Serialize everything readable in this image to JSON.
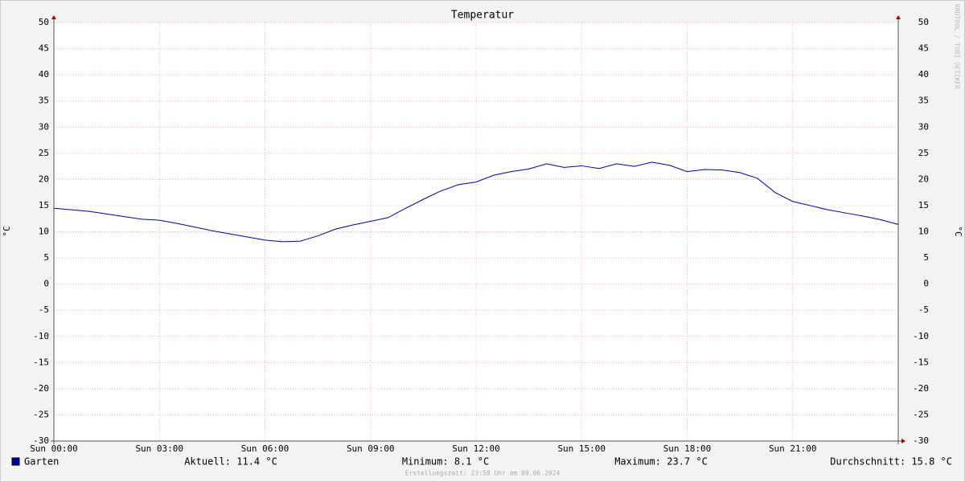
{
  "chart_data": {
    "type": "line",
    "title": "Temperatur",
    "y_label": "°C",
    "watermark": "RRDTOOL / TOBI OETIKER",
    "xlim": [
      0,
      24
    ],
    "xticks": [
      {
        "value": 0,
        "label": "Sun 00:00"
      },
      {
        "value": 3,
        "label": "Sun 03:00"
      },
      {
        "value": 6,
        "label": "Sun 06:00"
      },
      {
        "value": 9,
        "label": "Sun 09:00"
      },
      {
        "value": 12,
        "label": "Sun 12:00"
      },
      {
        "value": 15,
        "label": "Sun 15:00"
      },
      {
        "value": 18,
        "label": "Sun 18:00"
      },
      {
        "value": 21,
        "label": "Sun 21:00"
      }
    ],
    "ylim": [
      -30,
      50
    ],
    "yticks": [
      50,
      45,
      40,
      35,
      30,
      25,
      20,
      15,
      10,
      5,
      0,
      -5,
      -10,
      -15,
      -20,
      -25,
      -30
    ],
    "grid": true,
    "x": [
      0,
      0.5,
      1,
      1.5,
      2,
      2.5,
      3,
      3.5,
      4,
      4.5,
      5,
      5.5,
      6,
      6.5,
      7,
      7.5,
      8,
      8.5,
      9,
      9.5,
      10,
      10.5,
      11,
      11.5,
      12,
      12.5,
      13,
      13.5,
      14,
      14.5,
      15,
      15.5,
      16,
      16.5,
      17,
      17.5,
      18,
      18.5,
      19,
      19.5,
      20,
      20.5,
      21,
      21.5,
      22,
      22.5,
      23,
      23.5,
      24
    ],
    "series": [
      {
        "name": "Garten",
        "color": "#0000a0",
        "values": [
          14.5,
          14.2,
          13.9,
          13.4,
          12.9,
          12.4,
          12.2,
          11.6,
          10.9,
          10.2,
          9.6,
          9.0,
          8.4,
          8.1,
          8.2,
          9.2,
          10.5,
          11.3,
          12.0,
          12.7,
          14.5,
          16.2,
          17.8,
          19.0,
          19.5,
          20.8,
          21.5,
          22.0,
          23.0,
          22.3,
          22.6,
          22.1,
          23.0,
          22.5,
          23.3,
          22.7,
          21.5,
          21.9,
          21.8,
          21.3,
          20.2,
          17.5,
          15.8,
          15.0,
          14.2,
          13.6,
          13.0,
          12.3,
          11.4
        ]
      }
    ],
    "legend_stats": [
      "Aktuell: 11.4 °C",
      "Minimum: 8.1 °C",
      "Maximum: 23.7 °C",
      "Durchschnitt: 15.8 °C"
    ],
    "footer": "Erstellungszeit: 23:58 Uhr am 09.06.2024"
  }
}
